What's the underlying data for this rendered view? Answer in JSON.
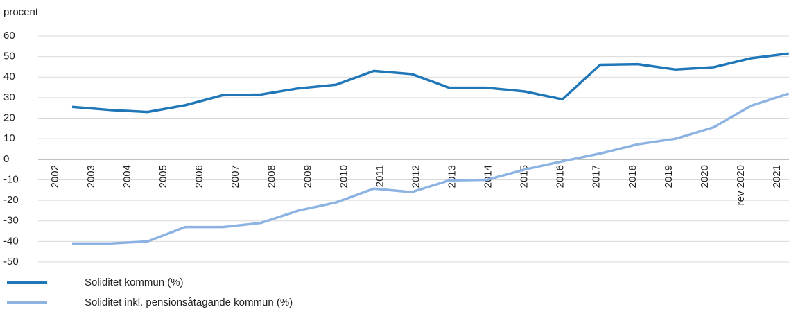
{
  "chart_data": {
    "type": "line",
    "y_axis_label": "procent",
    "categories": [
      "2002",
      "2003",
      "2004",
      "2005",
      "2006",
      "2007",
      "2008",
      "2009",
      "2010",
      "2011",
      "2012",
      "2013",
      "2014",
      "2015",
      "2016",
      "2017",
      "2018",
      "2019",
      "2020",
      "rev 2020",
      "2021"
    ],
    "series": [
      {
        "name": "Soliditet kommun (%)",
        "color": "#1f77b8",
        "values": [
          25.5,
          24,
          23,
          26.3,
          31.2,
          31.5,
          34.5,
          36.3,
          43,
          41.5,
          34.8,
          34.8,
          33,
          29.2,
          46,
          46.3,
          43.7,
          44.8,
          49.2,
          51.5,
          null
        ]
      },
      {
        "name": "Soliditet inkl. pensionsåtagande kommun (%)",
        "color": "#8db3e2",
        "values": [
          -41,
          -41,
          -40,
          -33,
          -33,
          -31,
          -25,
          -21,
          -14.3,
          -16,
          -10.3,
          -10,
          -5,
          -1,
          2.8,
          7.3,
          10,
          15.5,
          26,
          32,
          null
        ]
      }
    ],
    "ylim": [
      -50,
      60
    ],
    "yticks": [
      -50,
      -40,
      -30,
      -20,
      -10,
      0,
      10,
      20,
      30,
      40,
      50,
      60
    ],
    "grid": true,
    "negative_tick_color": "#c0392b",
    "legend": "bottom"
  }
}
